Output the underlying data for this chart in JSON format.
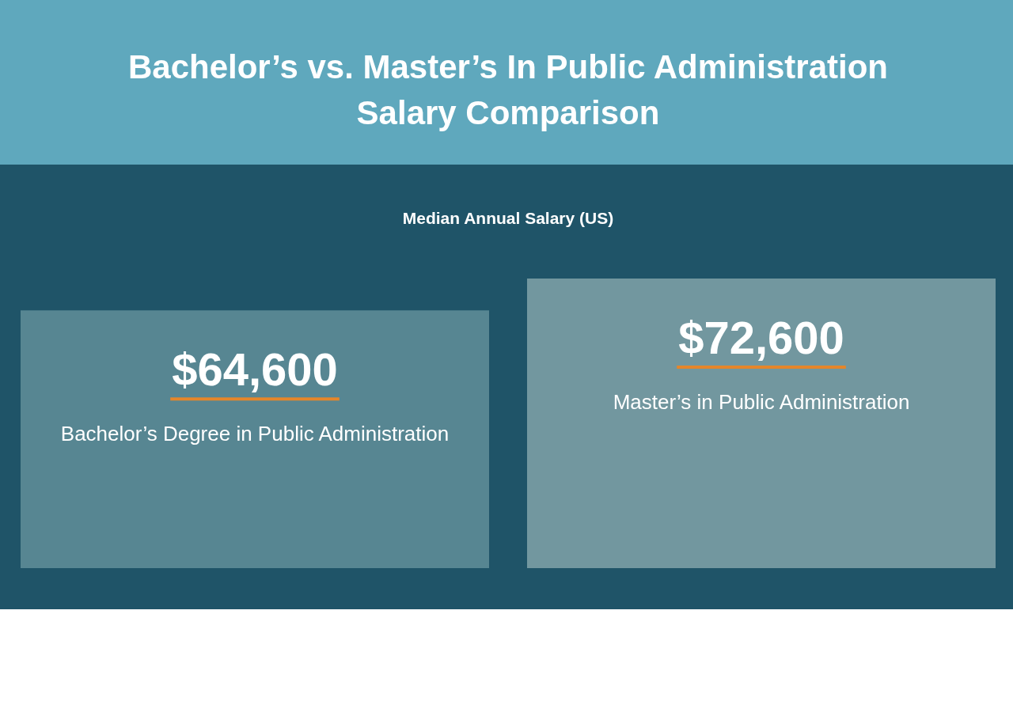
{
  "chart_data": {
    "type": "bar",
    "title": "Bachelor’s vs. Master’s In Public Administration Salary Comparison",
    "subtitle": "Median Annual Salary (US)",
    "categories": [
      "Bachelor’s Degree in Public Administration",
      "Master’s in Public Administration"
    ],
    "values": [
      64600,
      72600
    ],
    "colors": [
      "#578692",
      "#72979f"
    ],
    "value_labels": [
      "$64,600",
      "$72,600"
    ]
  }
}
